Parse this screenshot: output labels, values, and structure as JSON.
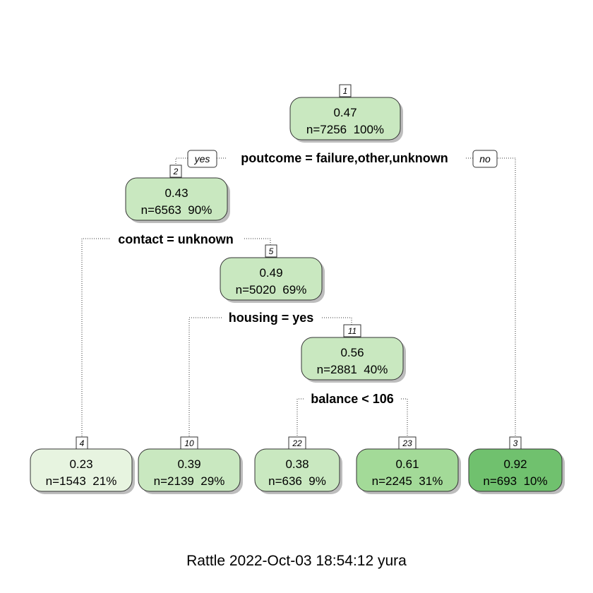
{
  "colors": {
    "fill_lightest": "#e7f4e0",
    "fill_light": "#c9e8c0",
    "fill_mid": "#a3da98",
    "fill_dark": "#70c16e",
    "border": "#333333",
    "shadow": "#bdbdbd"
  },
  "nodes": {
    "n1": {
      "num": "1",
      "value": "0.47",
      "count": "n=7256  100%"
    },
    "n2": {
      "num": "2",
      "value": "0.43",
      "count": "n=6563  90%"
    },
    "n5": {
      "num": "5",
      "value": "0.49",
      "count": "n=5020  69%"
    },
    "n11": {
      "num": "11",
      "value": "0.56",
      "count": "n=2881  40%"
    },
    "n4": {
      "num": "4",
      "value": "0.23",
      "count": "n=1543  21%"
    },
    "n10": {
      "num": "10",
      "value": "0.39",
      "count": "n=2139  29%"
    },
    "n22": {
      "num": "22",
      "value": "0.38",
      "count": "n=636  9%"
    },
    "n23": {
      "num": "23",
      "value": "0.61",
      "count": "n=2245  31%"
    },
    "n3": {
      "num": "3",
      "value": "0.92",
      "count": "n=693  10%"
    }
  },
  "splits": {
    "s1": "poutcome = failure,other,unknown",
    "s2": "contact = unknown",
    "s5": "housing = yes",
    "s11": "balance < 106"
  },
  "branch_labels": {
    "yes": "yes",
    "no": "no"
  },
  "footer": "Rattle 2022-Oct-03 18:54:12 yura"
}
